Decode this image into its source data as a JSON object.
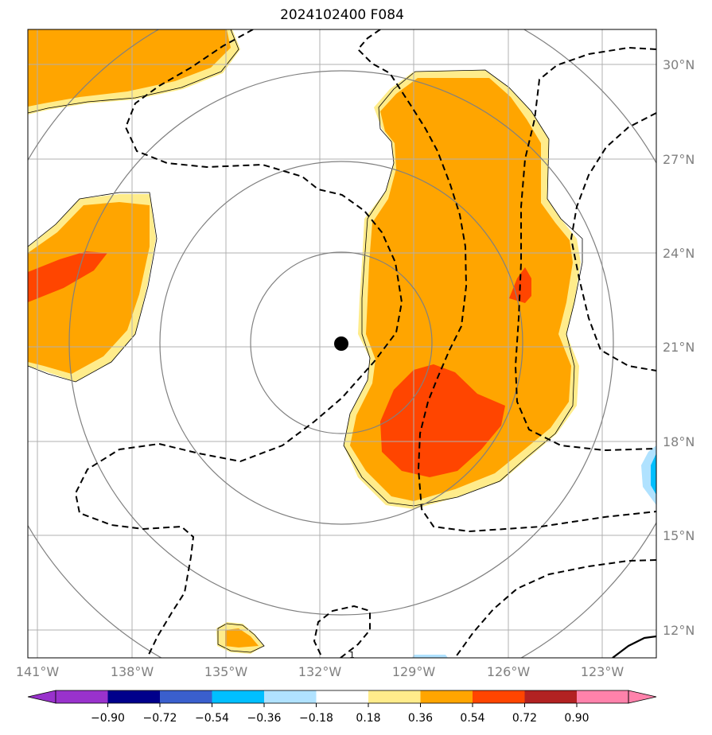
{
  "title": "2024102400 F084",
  "map": {
    "lon_labels": [
      "141°W",
      "138°W",
      "135°W",
      "132°W",
      "129°W",
      "126°W",
      "123°W"
    ],
    "lat_labels": [
      "30°N",
      "27°N",
      "24°N",
      "21°N",
      "18°N",
      "15°N",
      "12°N"
    ],
    "contour_label": "1",
    "storm_center": {
      "lon": "131.7°W",
      "lat": "21.1°N"
    },
    "range_ring_count": 4
  },
  "colorbar": {
    "ticks": [
      "−0.90",
      "−0.72",
      "−0.54",
      "−0.36",
      "−0.18",
      "0.18",
      "0.36",
      "0.54",
      "0.72",
      "0.90"
    ],
    "colors": [
      "#9932cc",
      "#00008b",
      "#3a5fcd",
      "#00bfff",
      "#b0e2ff",
      "#ffffff",
      "#ffec8b",
      "#ffa500",
      "#ff4500",
      "#b22222",
      "#ff82ab"
    ],
    "extend": "both"
  },
  "colors": {
    "light_yellow": "#ffec8b",
    "orange": "#ffa500",
    "red_orange": "#ff4500",
    "deep_sky_blue": "#00bfff",
    "light_blue": "#b0e2ff",
    "grid": "#b0b0b0",
    "ring": "#808080"
  }
}
